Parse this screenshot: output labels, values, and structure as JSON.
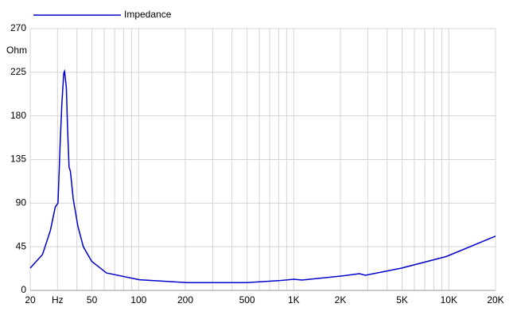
{
  "chart_data": {
    "type": "line",
    "y_label": "Ohm",
    "log_x": true,
    "grid": true,
    "xlim": [
      20,
      20000
    ],
    "ylim": [
      0,
      270
    ],
    "xticks": [
      20,
      {
        "value": 30,
        "label": "Hz"
      },
      50,
      100,
      200,
      500,
      {
        "value": 1000,
        "label": "1K"
      },
      {
        "value": 2000,
        "label": "2K"
      },
      {
        "value": 5000,
        "label": "5K"
      },
      {
        "value": 10000,
        "label": "10K"
      },
      {
        "value": 20000,
        "label": "20K"
      }
    ],
    "xminor": [
      40,
      60,
      70,
      80,
      90,
      300,
      400,
      600,
      700,
      800,
      900,
      3000,
      4000,
      6000,
      7000,
      8000,
      9000
    ],
    "yticks": [
      0,
      45,
      90,
      135,
      180,
      225,
      270
    ],
    "series": [
      {
        "name": "Impedance",
        "color": "#0000cc",
        "x": [
          20,
          24,
          27,
          29,
          30.2,
          31.2,
          32,
          32.9,
          33.3,
          34.2,
          34.8,
          35.6,
          36.3,
          37.9,
          40.6,
          44,
          49.8,
          62,
          101,
          206,
          496,
          797,
          1002,
          1130,
          2020,
          2650,
          2900,
          4960,
          9650,
          20000
        ],
        "values": [
          23,
          37,
          62,
          86,
          90,
          152,
          193,
          224,
          226,
          209,
          168,
          127,
          123,
          94,
          66,
          45,
          30,
          18,
          11,
          8,
          8,
          10,
          11.5,
          10.7,
          14.8,
          17.2,
          15.6,
          23,
          35,
          56
        ]
      }
    ]
  }
}
